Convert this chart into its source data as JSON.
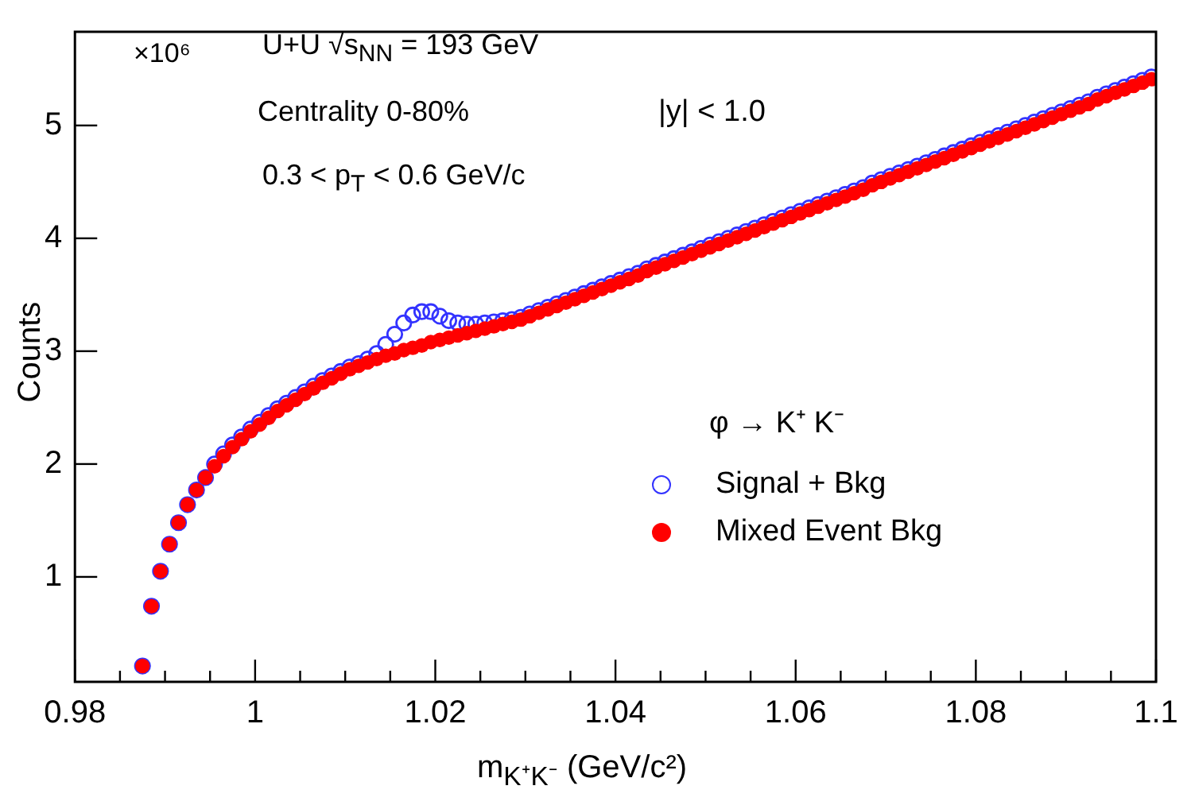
{
  "chart_data": {
    "type": "scatter",
    "xlabel": "m$_{K⁺K⁻}$ (GeV/c²)",
    "ylabel": "Counts",
    "legend_title": "φ → K⁺ K⁻",
    "annotations": [
      "×10⁶",
      "U+U √s$_{NN}$ = 193 GeV",
      "Centrality 0-80%",
      "0.3 < p$_{T}$ < 0.6 GeV/c",
      "|y| < 1.0"
    ],
    "x": [
      0.9875,
      0.9885,
      0.9895,
      0.9905,
      0.9915,
      0.9925,
      0.9935,
      0.9945,
      0.9955,
      0.9965,
      0.9975,
      0.9985,
      0.9995,
      1.0005,
      1.0015,
      1.0025,
      1.0035,
      1.0045,
      1.0055,
      1.0065,
      1.0075,
      1.0085,
      1.0095,
      1.0105,
      1.0115,
      1.0125,
      1.0135,
      1.0145,
      1.0155,
      1.0165,
      1.0175,
      1.0185,
      1.0195,
      1.0205,
      1.0215,
      1.0225,
      1.0235,
      1.0245,
      1.0255,
      1.0265,
      1.0275,
      1.0285,
      1.0295,
      1.0305,
      1.0315,
      1.0325,
      1.0335,
      1.0345,
      1.0355,
      1.0365,
      1.0375,
      1.0385,
      1.0395,
      1.0405,
      1.0415,
      1.0425,
      1.0435,
      1.0445,
      1.0455,
      1.0465,
      1.0475,
      1.0485,
      1.0495,
      1.0505,
      1.0515,
      1.0525,
      1.0535,
      1.0545,
      1.0555,
      1.0565,
      1.0575,
      1.0585,
      1.0595,
      1.0605,
      1.0615,
      1.0625,
      1.0635,
      1.0645,
      1.0655,
      1.0665,
      1.0675,
      1.0685,
      1.0695,
      1.0705,
      1.0715,
      1.0725,
      1.0735,
      1.0745,
      1.0755,
      1.0765,
      1.0775,
      1.0785,
      1.0795,
      1.0805,
      1.0815,
      1.0825,
      1.0835,
      1.0845,
      1.0855,
      1.0865,
      1.0875,
      1.0885,
      1.0895,
      1.0905,
      1.0915,
      1.0925,
      1.0935,
      1.0945,
      1.0955,
      1.0965,
      1.0975,
      1.0985,
      1.0995
    ],
    "series": [
      {
        "name": "Signal + Bkg",
        "color": "#3333ff",
        "values": [
          0.21,
          0.74,
          1.05,
          1.29,
          1.48,
          1.64,
          1.77,
          1.88,
          2.0,
          2.09,
          2.17,
          2.24,
          2.31,
          2.37,
          2.43,
          2.49,
          2.54,
          2.59,
          2.64,
          2.69,
          2.74,
          2.78,
          2.82,
          2.86,
          2.89,
          2.93,
          2.98,
          3.06,
          3.15,
          3.25,
          3.32,
          3.35,
          3.35,
          3.31,
          3.27,
          3.25,
          3.24,
          3.24,
          3.25,
          3.26,
          3.27,
          3.28,
          3.3,
          3.33,
          3.36,
          3.39,
          3.42,
          3.45,
          3.48,
          3.51,
          3.54,
          3.57,
          3.6,
          3.63,
          3.66,
          3.69,
          3.73,
          3.76,
          3.79,
          3.82,
          3.85,
          3.88,
          3.91,
          3.94,
          3.97,
          4.0,
          4.03,
          4.06,
          4.09,
          4.12,
          4.15,
          4.18,
          4.21,
          4.24,
          4.27,
          4.3,
          4.33,
          4.36,
          4.39,
          4.42,
          4.45,
          4.49,
          4.52,
          4.55,
          4.58,
          4.61,
          4.64,
          4.67,
          4.7,
          4.73,
          4.76,
          4.79,
          4.82,
          4.85,
          4.88,
          4.91,
          4.94,
          4.97,
          5.0,
          5.03,
          5.06,
          5.09,
          5.12,
          5.15,
          5.18,
          5.21,
          5.25,
          5.28,
          5.31,
          5.34,
          5.37,
          5.4,
          5.43
        ]
      },
      {
        "name": "Mixed Event Bkg",
        "color": "#ff0000",
        "values": [
          0.21,
          0.74,
          1.05,
          1.29,
          1.48,
          1.64,
          1.77,
          1.88,
          1.98,
          2.07,
          2.15,
          2.22,
          2.29,
          2.35,
          2.41,
          2.47,
          2.52,
          2.57,
          2.62,
          2.67,
          2.72,
          2.76,
          2.8,
          2.84,
          2.87,
          2.9,
          2.93,
          2.96,
          2.98,
          3.01,
          3.03,
          3.05,
          3.08,
          3.1,
          3.12,
          3.14,
          3.16,
          3.18,
          3.2,
          3.22,
          3.24,
          3.26,
          3.28,
          3.31,
          3.34,
          3.37,
          3.4,
          3.43,
          3.46,
          3.49,
          3.52,
          3.55,
          3.58,
          3.61,
          3.64,
          3.67,
          3.71,
          3.74,
          3.77,
          3.8,
          3.83,
          3.86,
          3.89,
          3.92,
          3.95,
          3.98,
          4.01,
          4.04,
          4.07,
          4.1,
          4.13,
          4.16,
          4.19,
          4.22,
          4.25,
          4.28,
          4.31,
          4.34,
          4.37,
          4.4,
          4.43,
          4.47,
          4.5,
          4.53,
          4.56,
          4.59,
          4.62,
          4.65,
          4.68,
          4.71,
          4.74,
          4.77,
          4.8,
          4.83,
          4.86,
          4.89,
          4.92,
          4.95,
          4.98,
          5.01,
          5.04,
          5.07,
          5.1,
          5.13,
          5.16,
          5.19,
          5.23,
          5.26,
          5.29,
          5.32,
          5.35,
          5.38,
          5.41
        ]
      }
    ],
    "xlim": [
      0.98,
      1.1
    ],
    "xticks": [
      0.98,
      {
        "value": 0.985,
        "label": null
      },
      {
        "value": 0.99,
        "label": null
      },
      {
        "value": 0.995,
        "label": null
      },
      1,
      {
        "value": 1.005,
        "label": null
      },
      {
        "value": 1.01,
        "label": null
      },
      {
        "value": 1.015,
        "label": null
      },
      1.02,
      {
        "value": 1.025,
        "label": null
      },
      {
        "value": 1.03,
        "label": null
      },
      {
        "value": 1.035,
        "label": null
      },
      1.04,
      {
        "value": 1.045,
        "label": null
      },
      {
        "value": 1.05,
        "label": null
      },
      {
        "value": 1.055,
        "label": null
      },
      1.06,
      {
        "value": 1.065,
        "label": null
      },
      {
        "value": 1.07,
        "label": null
      },
      {
        "value": 1.075,
        "label": null
      },
      1.08,
      {
        "value": 1.085,
        "label": null
      },
      {
        "value": 1.09,
        "label": null
      },
      {
        "value": 1.095,
        "label": null
      },
      1.1
    ],
    "ylim": [
      0.07,
      5.83
    ],
    "yticks": [
      1,
      2,
      3,
      4,
      5
    ],
    "grid": false,
    "legend": "right",
    "marker": "circle"
  }
}
